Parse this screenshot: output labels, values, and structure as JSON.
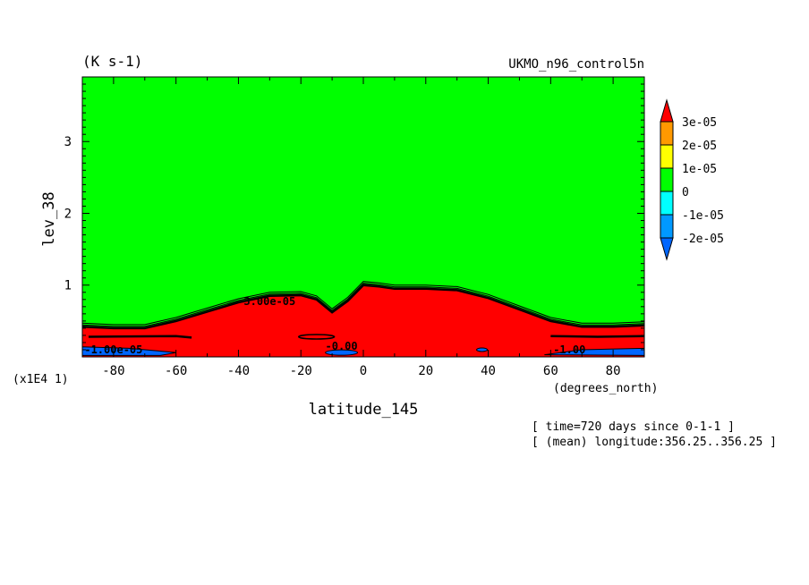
{
  "chart_data": {
    "type": "heatmap",
    "title_left": "(K s-1)",
    "title_right": "UKMO_n96_control5n",
    "xlabel": "latitude_145",
    "ylabel": "lev_38",
    "x_units": "(degrees_north)",
    "y_scale_note": "(x1E4 1)",
    "xlim": [
      -90,
      90
    ],
    "ylim": [
      0,
      3.9
    ],
    "x_ticks": [
      -80,
      -60,
      -40,
      -20,
      0,
      20,
      40,
      60,
      80
    ],
    "y_ticks": [
      1,
      2,
      3
    ],
    "colorbar": {
      "levels": [
        {
          "label": "3e-05",
          "color": "#ff0000"
        },
        {
          "label": "2e-05",
          "color": "#ff9900"
        },
        {
          "label": "1e-05",
          "color": "#ffff00"
        },
        {
          "label": "0",
          "color": "#00ff00"
        },
        {
          "label": "-1e-05",
          "color": "#00ffff"
        },
        {
          "label": "-2e-05",
          "color": "#0099ff"
        }
      ],
      "colors": [
        "#0066ff",
        "#0099ff",
        "#00ffff",
        "#00ff00",
        "#ffff00",
        "#ff9900",
        "#ff0000"
      ]
    },
    "background_color": "#00ff00",
    "positive_region_color": "#ff0000",
    "negative_region_color": "#0066ff",
    "positive_region_top": {
      "lat": [
        -90,
        -80,
        -70,
        -60,
        -50,
        -40,
        -30,
        -20,
        -15,
        -10,
        -5,
        0,
        5,
        10,
        20,
        30,
        40,
        50,
        60,
        70,
        80,
        90
      ],
      "lev": [
        0.42,
        0.4,
        0.4,
        0.5,
        0.63,
        0.76,
        0.85,
        0.86,
        0.8,
        0.62,
        0.78,
        1.0,
        0.98,
        0.95,
        0.95,
        0.93,
        0.82,
        0.66,
        0.5,
        0.42,
        0.42,
        0.44
      ]
    },
    "contour_labels": [
      {
        "text": "3.00e-05",
        "lat": -30,
        "lev": 0.72
      },
      {
        "text": "-1.00e-05",
        "lat": -80,
        "lev": 0.05
      },
      {
        "text": "-0.00",
        "lat": -7,
        "lev": 0.1
      },
      {
        "text": "-1.00",
        "lat": 66,
        "lev": 0.05
      }
    ],
    "annotations": [
      "[ time=720 days since 0-1-1 ]",
      "[ (mean) longitude:356.25..356.25 ]"
    ]
  }
}
